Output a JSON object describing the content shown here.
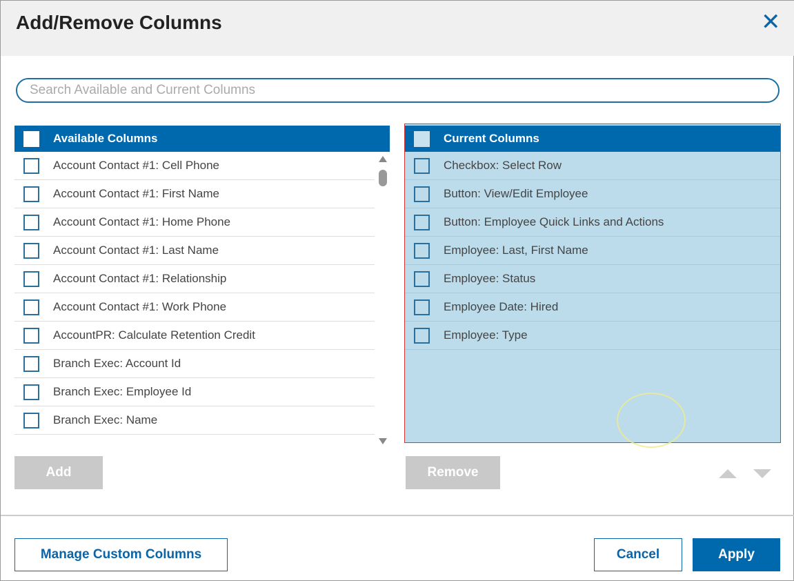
{
  "dialog": {
    "title": "Add/Remove Columns",
    "close_icon": "close-icon"
  },
  "search": {
    "placeholder": "Search Available and Current Columns",
    "value": ""
  },
  "available": {
    "header": "Available Columns",
    "items": [
      "Account Contact #1: Cell Phone",
      "Account Contact #1: First Name",
      "Account Contact #1: Home Phone",
      "Account Contact #1: Last Name",
      "Account Contact #1: Relationship",
      "Account Contact #1: Work Phone",
      "AccountPR: Calculate Retention Credit",
      "Branch Exec: Account Id",
      "Branch Exec: Employee Id",
      "Branch Exec: Name"
    ]
  },
  "current": {
    "header": "Current Columns",
    "items": [
      "Checkbox: Select Row",
      "Button: View/Edit Employee",
      "Button: Employee Quick Links and Actions",
      "Employee: Last, First Name",
      "Employee: Status",
      "Employee Date: Hired",
      "Employee: Type"
    ]
  },
  "buttons": {
    "add": "Add",
    "remove": "Remove",
    "manage": "Manage Custom Columns",
    "cancel": "Cancel",
    "apply": "Apply"
  },
  "colors": {
    "primary": "#0069ae",
    "current_bg": "#bcdcec",
    "disabled": "#c9c9c9",
    "selection_border": "#dd3333"
  }
}
